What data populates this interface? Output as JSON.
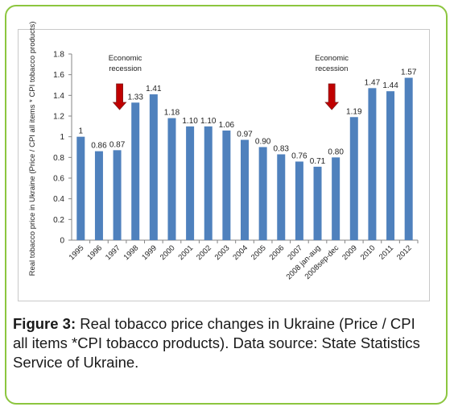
{
  "figure": {
    "label": "Figure 3:",
    "text": "Real tobacco price changes in Ukraine (Price / CPI all items *CPI tobacco products). Data source: State Statistics Service of Ukraine."
  },
  "chart_data": {
    "type": "bar",
    "ylabel": "Real tobacco price in Ukraine (Price / CPI all items * CPI tobacco products)",
    "ylim": [
      0,
      1.8
    ],
    "yticks": [
      "0",
      "0.2",
      "0.4",
      "0.6",
      "0.8",
      "1",
      "1.2",
      "1.4",
      "1.6",
      "1.8"
    ],
    "grid": false,
    "bar_color": "#4f81bd",
    "categories": [
      "1995",
      "1996",
      "1997",
      "1998",
      "1999",
      "2000",
      "2001",
      "2002",
      "2003",
      "2004",
      "2005",
      "2006",
      "2007",
      "2008 jan-aug",
      "2008sep-dec",
      "2009",
      "2010",
      "2011",
      "2012"
    ],
    "values": [
      1,
      0.86,
      0.87,
      1.33,
      1.41,
      1.18,
      1.1,
      1.1,
      1.06,
      0.97,
      0.9,
      0.83,
      0.76,
      0.71,
      0.8,
      1.19,
      1.47,
      1.44,
      1.57
    ],
    "data_labels": [
      "1",
      "0.86",
      "0.87",
      "1.33",
      "1.41",
      "1.18",
      "1.10",
      "1.10",
      "1.06",
      "0.97",
      "0.90",
      "0.83",
      "0.76",
      "0.71",
      "0.80",
      "1.19",
      "1.47",
      "1.44",
      "1.57"
    ],
    "annotations": [
      {
        "text_line1": "Economic",
        "text_line2": "recession",
        "category": "1997",
        "arrow_color": "#c00000"
      },
      {
        "text_line1": "Economic",
        "text_line2": "recession",
        "category": "2008sep-dec",
        "arrow_color": "#c00000"
      }
    ]
  }
}
